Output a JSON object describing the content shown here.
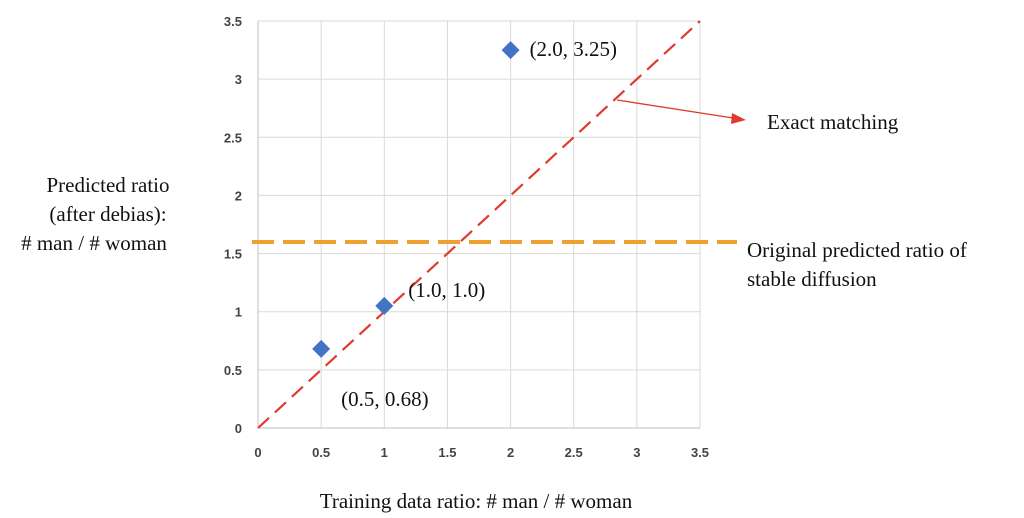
{
  "chart_data": {
    "type": "scatter",
    "title": "",
    "xlabel": "Training data ratio: # man / # woman",
    "ylabel_lines": [
      "Predicted ratio",
      "(after debias):",
      "# man / # woman"
    ],
    "xlim": [
      0,
      3.5
    ],
    "ylim": [
      0,
      3.5
    ],
    "x_ticks": [
      "0",
      "0.5",
      "1",
      "1.5",
      "2",
      "2.5",
      "3",
      "3.5"
    ],
    "y_ticks": [
      "0",
      "0.5",
      "1",
      "1.5",
      "2",
      "2.5",
      "3",
      "3.5"
    ],
    "grid": true,
    "series": [
      {
        "marker": "diamond",
        "color": "#4472c4",
        "points": [
          {
            "x": 0.5,
            "y": 0.68,
            "label": "(0.5, 0.68)"
          },
          {
            "x": 1.0,
            "y": 1.05,
            "label": "(1.0, 1.0)"
          },
          {
            "x": 2.0,
            "y": 3.25,
            "label": "(2.0, 3.25)"
          }
        ]
      }
    ],
    "reference_lines": [
      {
        "kind": "diagonal",
        "from": [
          0,
          0
        ],
        "to": [
          3.5,
          3.5
        ],
        "style": "dashed",
        "color": "#e03a2f",
        "annotation": "Exact matching"
      },
      {
        "kind": "horizontal",
        "y": 1.6,
        "style": "dashed",
        "color": "#f0a030",
        "annotation_lines": [
          "Original predicted ratio of",
          "stable diffusion"
        ]
      }
    ]
  }
}
